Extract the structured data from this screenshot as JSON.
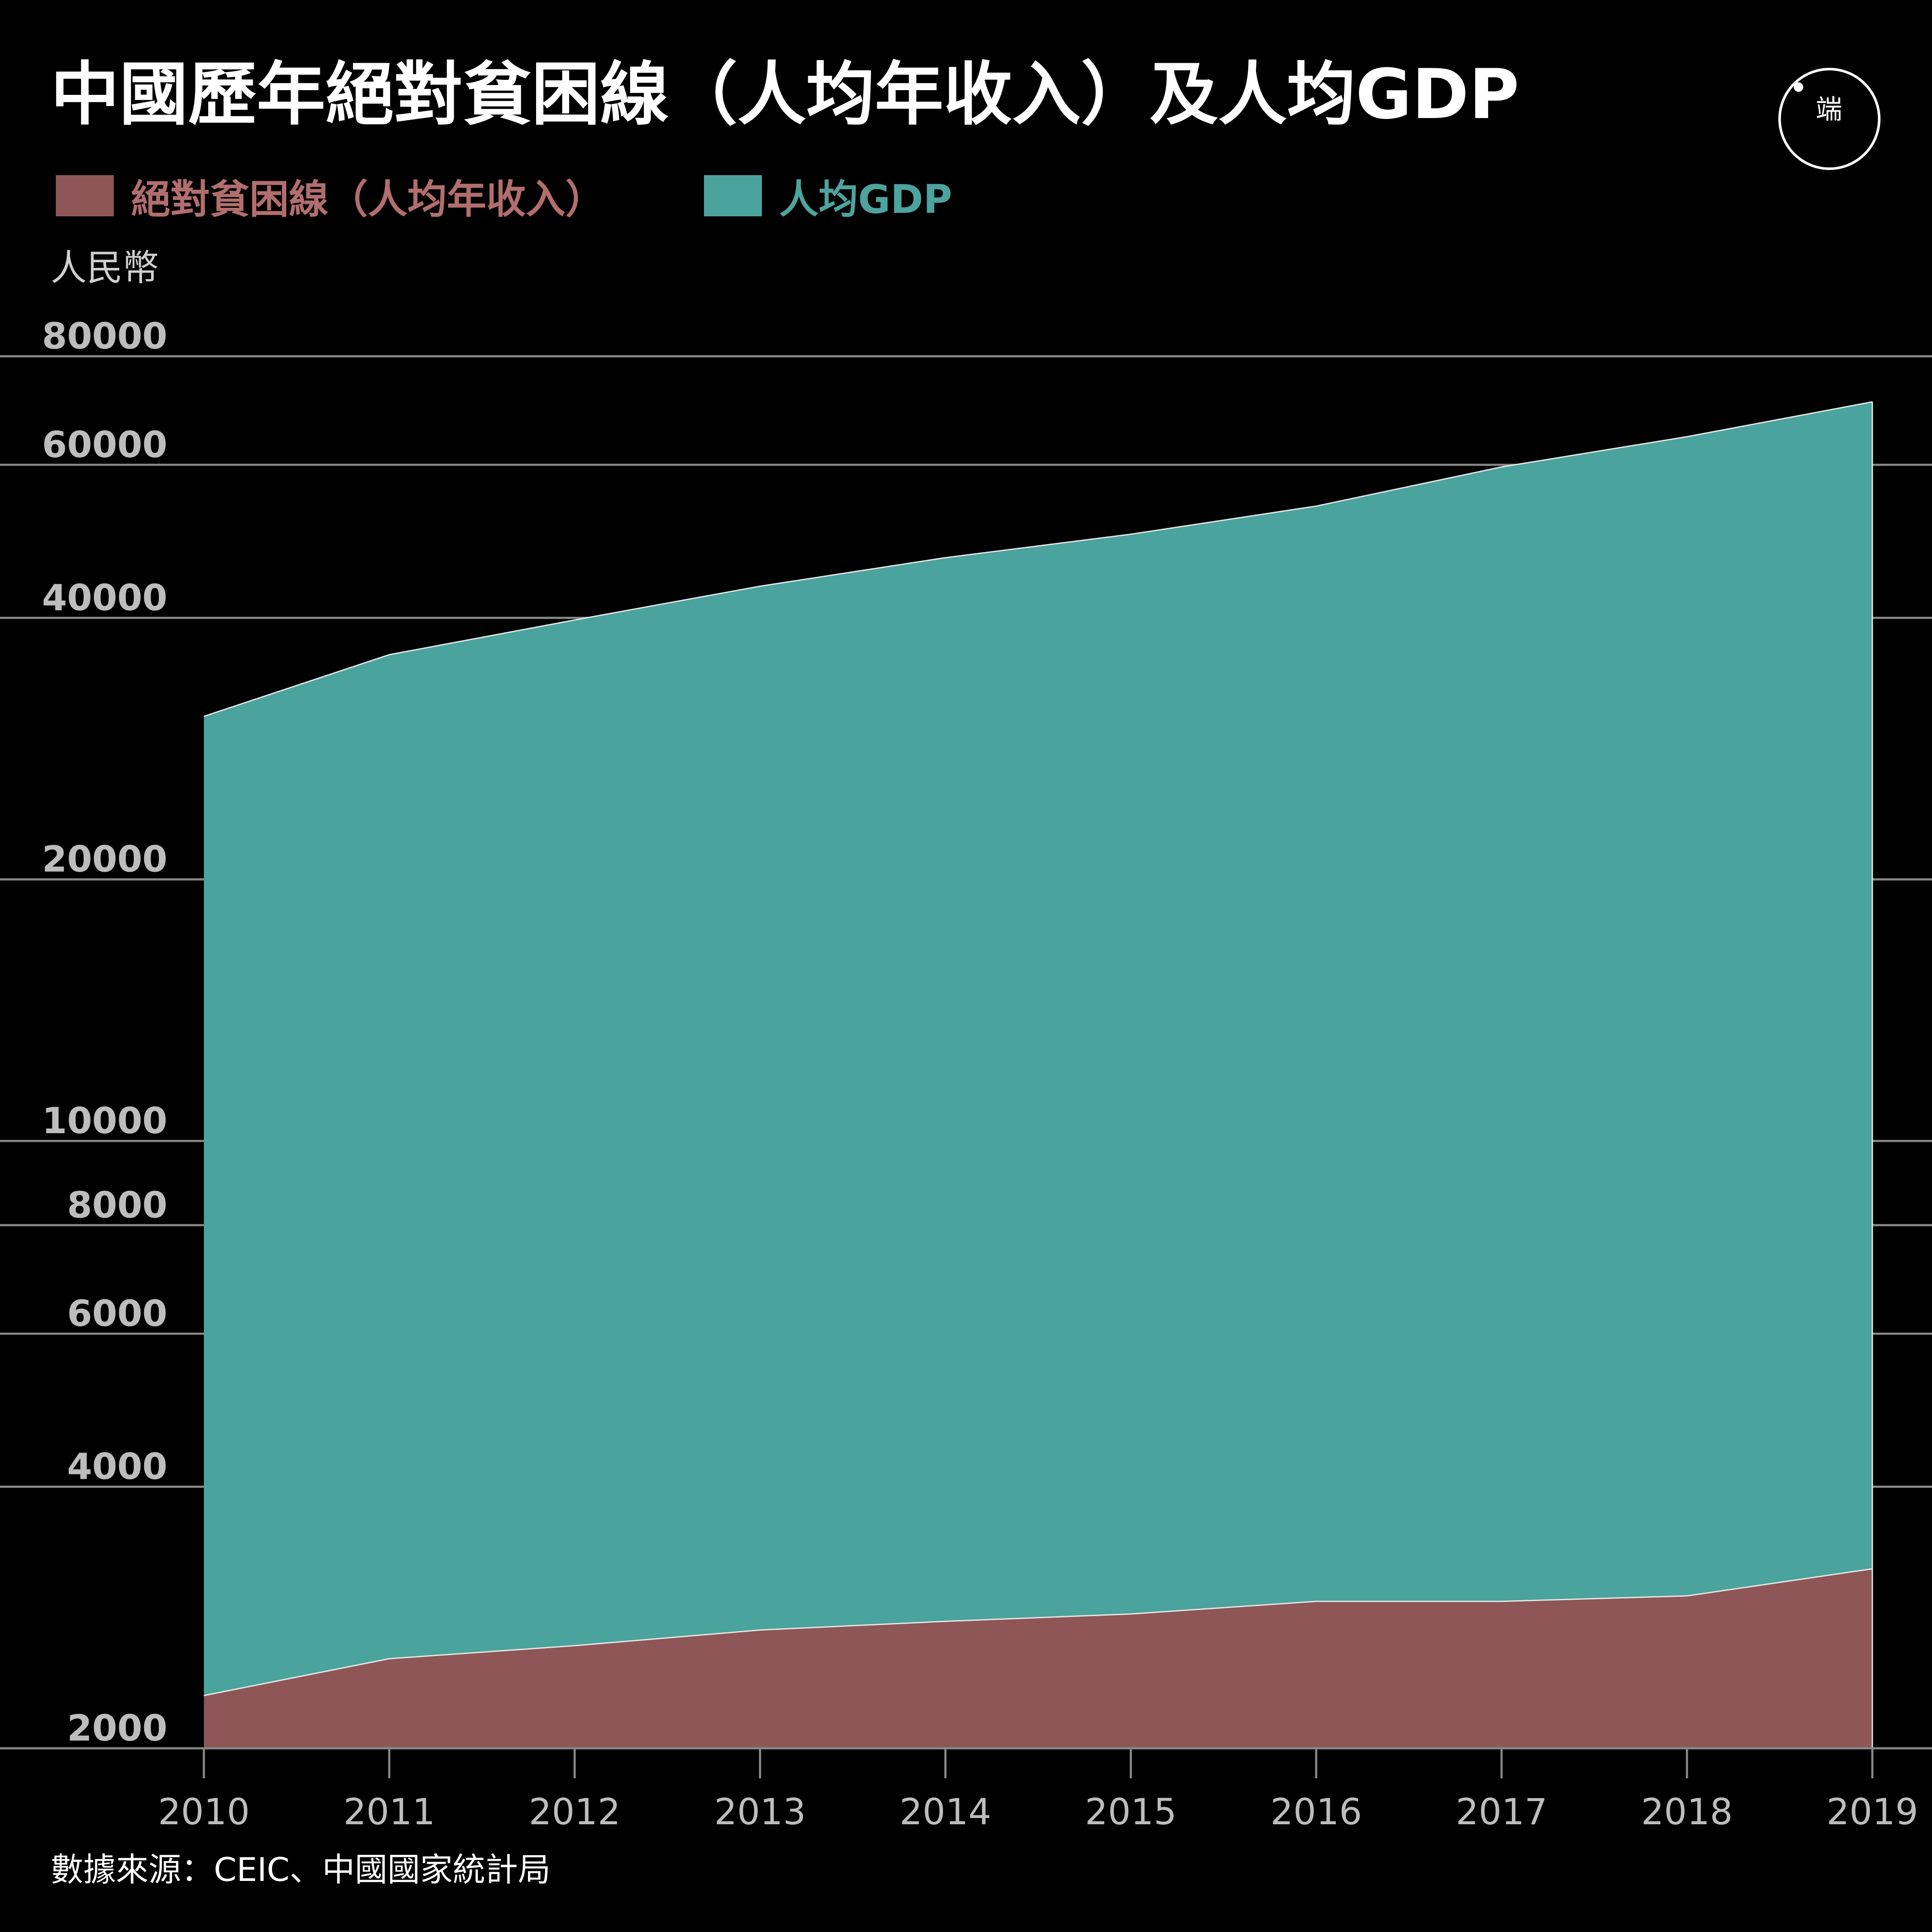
{
  "title": "中國歷年絕對貧困線（人均年收入）及人均GDP",
  "logo": {
    "text": "端",
    "icon": "initium-logo-icon"
  },
  "unit_label": "人民幣",
  "source": "數據來源：CEIC、中國國家統計局",
  "colors": {
    "background": "#000000",
    "poverty": "#8e5656",
    "gdp": "#4aa39d",
    "poverty_legend_text": "#b26e6e",
    "gdp_legend_text": "#4da39d",
    "grid": "#888888",
    "tick_text": "#bdbdbd"
  },
  "chart_data": {
    "type": "area",
    "title": "中國歷年絕對貧困線（人均年收入）及人均GDP",
    "ylabel": "人民幣",
    "yscale": "log",
    "ylim": [
      2000,
      80000
    ],
    "yticks": [
      2000,
      4000,
      6000,
      8000,
      10000,
      20000,
      40000,
      60000,
      80000
    ],
    "x": [
      2010,
      2011,
      2012,
      2013,
      2014,
      2015,
      2016,
      2017,
      2018,
      2019
    ],
    "series": [
      {
        "name": "絕對貧困線（人均年收入）",
        "color": "#8e5656",
        "values": [
          2300,
          2536,
          2625,
          2736,
          2800,
          2855,
          2952,
          2952,
          2995,
          3218
        ]
      },
      {
        "name": "人均GDP",
        "color": "#4aa39d",
        "values": [
          30808,
          36277,
          39771,
          43497,
          46912,
          49922,
          53783,
          59660,
          64644,
          70892
        ]
      }
    ],
    "legend_position": "top-left",
    "grid": true
  }
}
